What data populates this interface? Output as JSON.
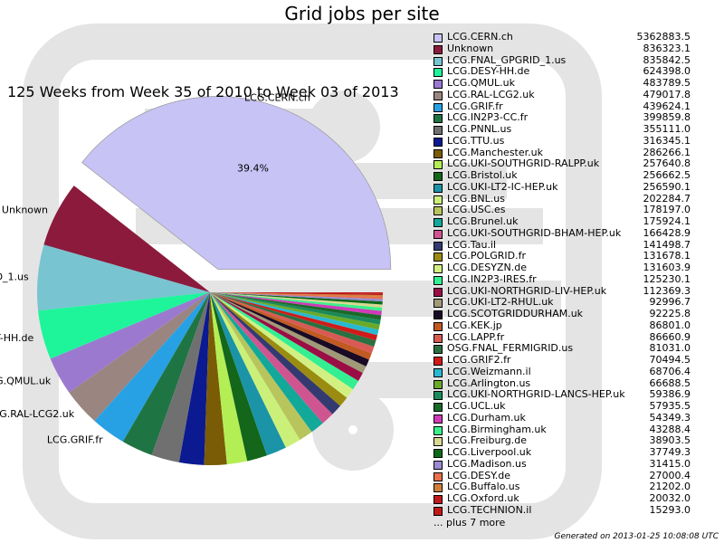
{
  "chart_data": {
    "type": "pie",
    "title": "Grid jobs per site",
    "subtitle": "125 Weeks from Week 35 of 2010 to Week 03 of 2013",
    "footer": "Generated on 2013-01-25 10:08:08 UTC",
    "more_label": "... plus 7 more",
    "largest_slice_percent_label": "39.4%",
    "slices": [
      {
        "label": "LCG.CERN.ch",
        "value": 5362883.5,
        "display": "5362883.5",
        "color": "#c8c3f5"
      },
      {
        "label": "Unknown",
        "value": 836323.1,
        "display": "836323.1",
        "color": "#8b1a3c"
      },
      {
        "label": "LCG.FNAL_GPGRID_1.us",
        "value": 835842.5,
        "display": "835842.5",
        "color": "#78c4d0"
      },
      {
        "label": "LCG.DESY-HH.de",
        "value": 624398.0,
        "display": "624398.0",
        "color": "#1ef59a"
      },
      {
        "label": "LCG.QMUL.uk",
        "value": 483789.5,
        "display": "483789.5",
        "color": "#9b79cf"
      },
      {
        "label": "LCG.RAL-LCG2.uk",
        "value": 479017.8,
        "display": "479017.8",
        "color": "#9a8580"
      },
      {
        "label": "LCG.GRIF.fr",
        "value": 439624.1,
        "display": "439624.1",
        "color": "#27a1e4"
      },
      {
        "label": "LCG.IN2P3-CC.fr",
        "value": 399859.8,
        "display": "399859.8",
        "color": "#1f7444"
      },
      {
        "label": "LCG.PNNL.us",
        "value": 355111.0,
        "display": "355111.0",
        "color": "#707070"
      },
      {
        "label": "LCG.TTU.us",
        "value": 316345.1,
        "display": "316345.1",
        "color": "#0b1a90"
      },
      {
        "label": "LCG.Manchester.uk",
        "value": 286266.1,
        "display": "286266.1",
        "color": "#7a5c06"
      },
      {
        "label": "LCG.UKI-SOUTHGRID-RALPP.uk",
        "value": 257640.8,
        "display": "257640.8",
        "color": "#b4ee55"
      },
      {
        "label": "LCG.Bristol.uk",
        "value": 256662.5,
        "display": "256662.5",
        "color": "#14661a"
      },
      {
        "label": "LCG.UKI-LT2-IC-HEP.uk",
        "value": 256590.1,
        "display": "256590.1",
        "color": "#1a94a6"
      },
      {
        "label": "LCG.BNL.us",
        "value": 202284.7,
        "display": "202284.7",
        "color": "#caf07a"
      },
      {
        "label": "LCG.USC.es",
        "value": 178197.0,
        "display": "178197.0",
        "color": "#b8c55c"
      },
      {
        "label": "LCG.Brunel.uk",
        "value": 175924.1,
        "display": "175924.1",
        "color": "#12a89a"
      },
      {
        "label": "LCG.UKI-SOUTHGRID-BHAM-HEP.uk",
        "value": 166428.9,
        "display": "166428.9",
        "color": "#cf5590"
      },
      {
        "label": "LCG.Tau.il",
        "value": 141498.7,
        "display": "141498.7",
        "color": "#333a70"
      },
      {
        "label": "LCG.POLGRID.fr",
        "value": 131678.1,
        "display": "131678.1",
        "color": "#9a8c10"
      },
      {
        "label": "LCG.DESYZN.de",
        "value": 131603.9,
        "display": "131603.9",
        "color": "#d2f082"
      },
      {
        "label": "LCG.IN2P3-IRES.fr",
        "value": 125230.1,
        "display": "125230.1",
        "color": "#34ef92"
      },
      {
        "label": "LCG.UKI-NORTHGRID-LIV-HEP.uk",
        "value": 112369.3,
        "display": "112369.3",
        "color": "#9a0e45"
      },
      {
        "label": "LCG.UKI-LT2-RHUL.uk",
        "value": 92996.7,
        "display": "92996.7",
        "color": "#a09a78"
      },
      {
        "label": "LCG.SCOTGRIDDURHAM.uk",
        "value": 92225.8,
        "display": "92225.8",
        "color": "#1a0a24"
      },
      {
        "label": "LCG.KEK.jp",
        "value": 86801.0,
        "display": "86801.0",
        "color": "#c05a22"
      },
      {
        "label": "LCG.LAPP.fr",
        "value": 86660.9,
        "display": "86660.9",
        "color": "#d85a55"
      },
      {
        "label": "OSG.FNAL_FERMIGRID.us",
        "value": 81031.0,
        "display": "81031.0",
        "color": "#2a7040"
      },
      {
        "label": "LCG.GRIF2.fr",
        "value": 70494.5,
        "display": "70494.5",
        "color": "#d01a1a"
      },
      {
        "label": "LCG.Weizmann.il",
        "value": 68706.4,
        "display": "68706.4",
        "color": "#2ab8d0"
      },
      {
        "label": "LCG.Arlington.us",
        "value": 66688.5,
        "display": "66688.5",
        "color": "#6aaa2a"
      },
      {
        "label": "LCG.UKI-NORTHGRID-LANCS-HEP.uk",
        "value": 59386.9,
        "display": "59386.9",
        "color": "#1a8a5a"
      },
      {
        "label": "LCG.UCL.uk",
        "value": 57935.5,
        "display": "57935.5",
        "color": "#1a6a2a"
      },
      {
        "label": "LCG.Durham.uk",
        "value": 54349.3,
        "display": "54349.3",
        "color": "#d03ab8"
      },
      {
        "label": "LCG.Birmingham.uk",
        "value": 43288.4,
        "display": "43288.4",
        "color": "#3af08a"
      },
      {
        "label": "LCG.Freiburg.de",
        "value": 38903.5,
        "display": "38903.5",
        "color": "#d8d890"
      },
      {
        "label": "LCG.Liverpool.uk",
        "value": 37749.3,
        "display": "37749.3",
        "color": "#0a6a1a"
      },
      {
        "label": "LCG.Madison.us",
        "value": 31415.0,
        "display": "31415.0",
        "color": "#9a8ad0"
      },
      {
        "label": "LCG.DESY.de",
        "value": 27000.4,
        "display": "27000.4",
        "color": "#e8704a"
      },
      {
        "label": "LCG.Buffalo.us",
        "value": 21202.0,
        "display": "21202.0",
        "color": "#d0803a"
      },
      {
        "label": "LCG.Oxford.uk",
        "value": 20032.0,
        "display": "20032.0",
        "color": "#c01a1a"
      },
      {
        "label": "LCG.TECHNION.il",
        "value": 15293.0,
        "display": "15293.0",
        "color": "#c01a1a"
      }
    ],
    "slice_labels_shown": [
      "LCG.CERN.ch",
      "Unknown",
      "LCG.FNAL_GPGRID_1.us",
      "LCG.DESY-HH.de",
      "LCG.QMUL.uk",
      "LCG.RAL-LCG2.uk",
      "LCG.GRIF.fr"
    ],
    "legend_position": "right",
    "exploded_slice": "LCG.CERN.ch"
  }
}
